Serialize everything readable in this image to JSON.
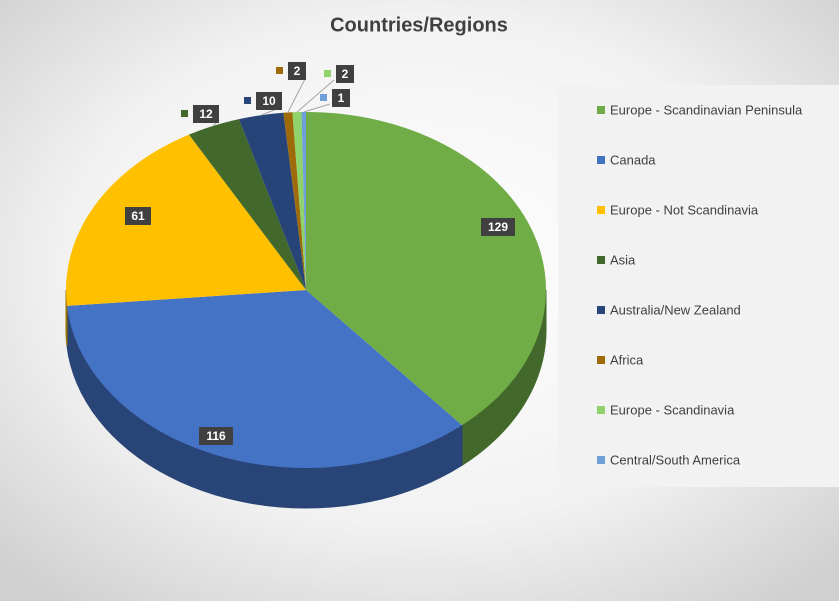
{
  "chart_data": {
    "type": "pie3d",
    "title": "Countries/Regions",
    "categories": [
      "Europe - Scandinavian Peninsula",
      "Canada",
      "Europe - Not Scandinavia",
      "Asia",
      "Australia/New Zealand",
      "Africa",
      "Europe - Scandinavia",
      "Central/South America"
    ],
    "values": [
      129,
      116,
      61,
      12,
      10,
      2,
      2,
      1
    ],
    "colors": [
      "#70ad47",
      "#4472c4",
      "#ffc000",
      "#43682b",
      "#264478",
      "#9e6a0a",
      "#8fd36a",
      "#6f9fd8"
    ],
    "legend": "right"
  }
}
